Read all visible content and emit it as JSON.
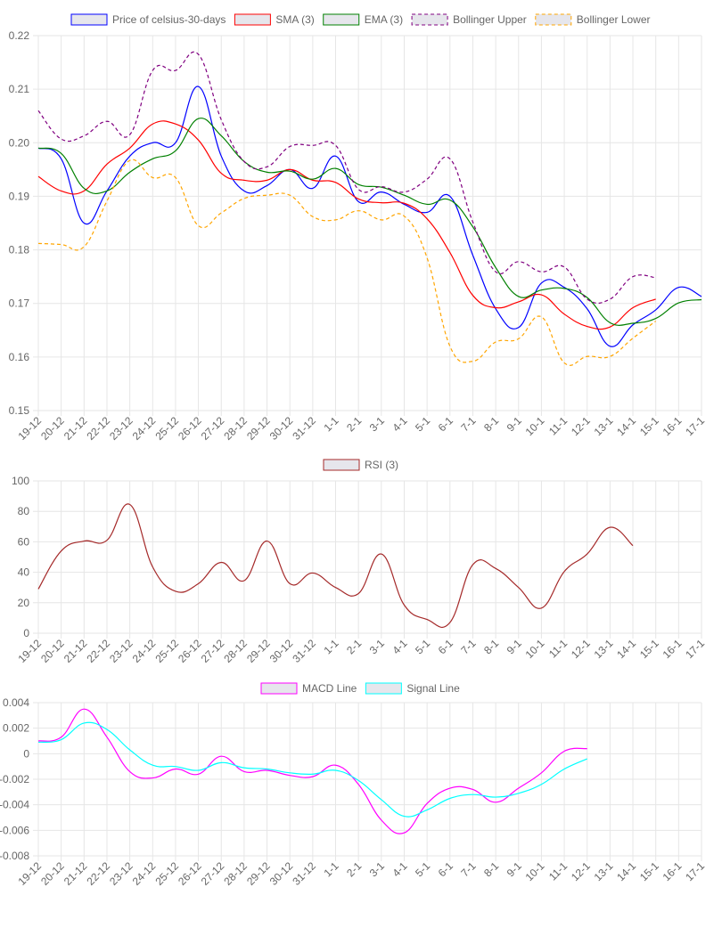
{
  "chart_data": [
    {
      "type": "line",
      "categories": [
        "19-12",
        "20-12",
        "21-12",
        "22-12",
        "23-12",
        "24-12",
        "25-12",
        "26-12",
        "27-12",
        "28-12",
        "29-12",
        "30-12",
        "31-12",
        "1-1",
        "2-1",
        "3-1",
        "4-1",
        "5-1",
        "6-1",
        "7-1",
        "8-1",
        "9-1",
        "10-1",
        "11-1",
        "12-1",
        "13-1",
        "14-1",
        "15-1",
        "16-1",
        "17-1"
      ],
      "ylim": [
        0.15,
        0.22
      ],
      "yticks": [
        "0.15",
        "0.16",
        "0.17",
        "0.18",
        "0.19",
        "0.20",
        "0.21",
        "0.22"
      ],
      "series": [
        {
          "name": "Price of celsius-30-days",
          "color": "#0000ff",
          "dashed": false,
          "values": [
            0.199,
            0.197,
            0.185,
            0.191,
            0.1975,
            0.2,
            0.2,
            0.2105,
            0.1975,
            0.191,
            0.192,
            0.195,
            0.1915,
            0.1975,
            0.189,
            0.1908,
            0.1885,
            0.187,
            0.19,
            0.179,
            0.169,
            0.1655,
            0.1738,
            0.173,
            0.169,
            0.162,
            0.166,
            0.1688,
            0.173,
            0.1713
          ]
        },
        {
          "name": "SMA (3)",
          "color": "#ff0000",
          "dashed": false,
          "values": [
            0.1937,
            0.191,
            0.191,
            0.196,
            0.199,
            0.2035,
            0.2035,
            0.2005,
            0.1943,
            0.193,
            0.193,
            0.195,
            0.193,
            0.1926,
            0.1895,
            0.1888,
            0.1887,
            0.1858,
            0.1795,
            0.1715,
            0.1692,
            0.1703,
            0.1716,
            0.168,
            0.1657,
            0.1656,
            0.1692,
            0.1708,
            null,
            null
          ]
        },
        {
          "name": "EMA (3)",
          "color": "#008000",
          "dashed": false,
          "values": [
            0.199,
            0.198,
            0.1915,
            0.191,
            0.1945,
            0.197,
            0.1985,
            0.2045,
            0.2013,
            0.1965,
            0.1945,
            0.1947,
            0.1932,
            0.1952,
            0.1922,
            0.1917,
            0.1902,
            0.1885,
            0.1893,
            0.1843,
            0.1767,
            0.1713,
            0.1725,
            0.1728,
            0.1711,
            0.1664,
            0.1663,
            0.1672,
            0.1701,
            0.1707
          ]
        },
        {
          "name": "Bollinger Upper",
          "color": "#800080",
          "dashed": true,
          "values": [
            0.206,
            0.2007,
            0.2013,
            0.204,
            0.2015,
            0.2135,
            0.2135,
            0.2165,
            0.2043,
            0.1965,
            0.1955,
            0.1993,
            0.1995,
            0.1995,
            0.1913,
            0.1918,
            0.1908,
            0.1932,
            0.197,
            0.1852,
            0.1759,
            0.1778,
            0.1759,
            0.1768,
            0.1708,
            0.1708,
            0.175,
            0.1748,
            null,
            null
          ]
        },
        {
          "name": "Bollinger Lower",
          "color": "#ffa500",
          "dashed": true,
          "values": [
            0.1812,
            0.181,
            0.1806,
            0.1891,
            0.1967,
            0.1935,
            0.1935,
            0.1845,
            0.1869,
            0.1896,
            0.1902,
            0.1902,
            0.1862,
            0.1856,
            0.1873,
            0.1856,
            0.1863,
            0.1785,
            0.162,
            0.1592,
            0.1628,
            0.1634,
            0.1675,
            0.1589,
            0.1601,
            0.1601,
            0.1635,
            0.1667,
            null,
            null
          ]
        }
      ]
    },
    {
      "type": "line",
      "categories": [
        "19-12",
        "20-12",
        "21-12",
        "22-12",
        "23-12",
        "24-12",
        "25-12",
        "26-12",
        "27-12",
        "28-12",
        "29-12",
        "30-12",
        "31-12",
        "1-1",
        "2-1",
        "3-1",
        "4-1",
        "5-1",
        "6-1",
        "7-1",
        "8-1",
        "9-1",
        "10-1",
        "11-1",
        "12-1",
        "13-1",
        "14-1",
        "15-1",
        "16-1",
        "17-1"
      ],
      "ylim": [
        0,
        100
      ],
      "yticks": [
        "0",
        "20",
        "40",
        "60",
        "80",
        "100"
      ],
      "series": [
        {
          "name": "RSI (3)",
          "color": "#a52a2a",
          "dashed": false,
          "values": [
            29,
            54,
            60.5,
            61,
            84.5,
            43.5,
            27.5,
            32.5,
            46.5,
            34.5,
            60.5,
            32.5,
            39.5,
            30,
            26,
            52,
            18.5,
            9,
            7,
            45,
            42.5,
            30,
            16.5,
            40.5,
            52,
            69.5,
            57.5,
            null,
            null,
            null
          ]
        }
      ]
    },
    {
      "type": "line",
      "categories": [
        "19-12",
        "20-12",
        "21-12",
        "22-12",
        "23-12",
        "24-12",
        "25-12",
        "26-12",
        "27-12",
        "28-12",
        "29-12",
        "30-12",
        "31-12",
        "1-1",
        "2-1",
        "3-1",
        "4-1",
        "5-1",
        "6-1",
        "7-1",
        "8-1",
        "9-1",
        "10-1",
        "11-1",
        "12-1",
        "13-1",
        "14-1",
        "15-1",
        "16-1",
        "17-1"
      ],
      "ylim": [
        -0.008,
        0.004
      ],
      "yticks": [
        "-0.008",
        "-0.006",
        "-0.004",
        "-0.002",
        "0",
        "0.002",
        "0.004"
      ],
      "series": [
        {
          "name": "MACD Line",
          "color": "#ff00ff",
          "dashed": false,
          "values": [
            0.001,
            0.0013,
            0.0035,
            0.0013,
            -0.0014,
            -0.0019,
            -0.0012,
            -0.0016,
            -0.0002,
            -0.0014,
            -0.0013,
            -0.0017,
            -0.0018,
            -0.0009,
            -0.0024,
            -0.0052,
            -0.0062,
            -0.0039,
            -0.0027,
            -0.0028,
            -0.0038,
            -0.0027,
            -0.0015,
            0.0002,
            0.0004,
            null,
            null,
            null,
            null,
            null
          ]
        },
        {
          "name": "Signal Line",
          "color": "#00ffff",
          "dashed": false,
          "values": [
            0.0009,
            0.0011,
            0.0024,
            0.0019,
            0.0003,
            -0.0009,
            -0.001,
            -0.0013,
            -0.0007,
            -0.0011,
            -0.0012,
            -0.0015,
            -0.0016,
            -0.0013,
            -0.0021,
            -0.0036,
            -0.0049,
            -0.0044,
            -0.0035,
            -0.0032,
            -0.0034,
            -0.0031,
            -0.0024,
            -0.0012,
            -0.0004,
            null,
            null,
            null,
            null,
            null
          ]
        }
      ]
    }
  ]
}
